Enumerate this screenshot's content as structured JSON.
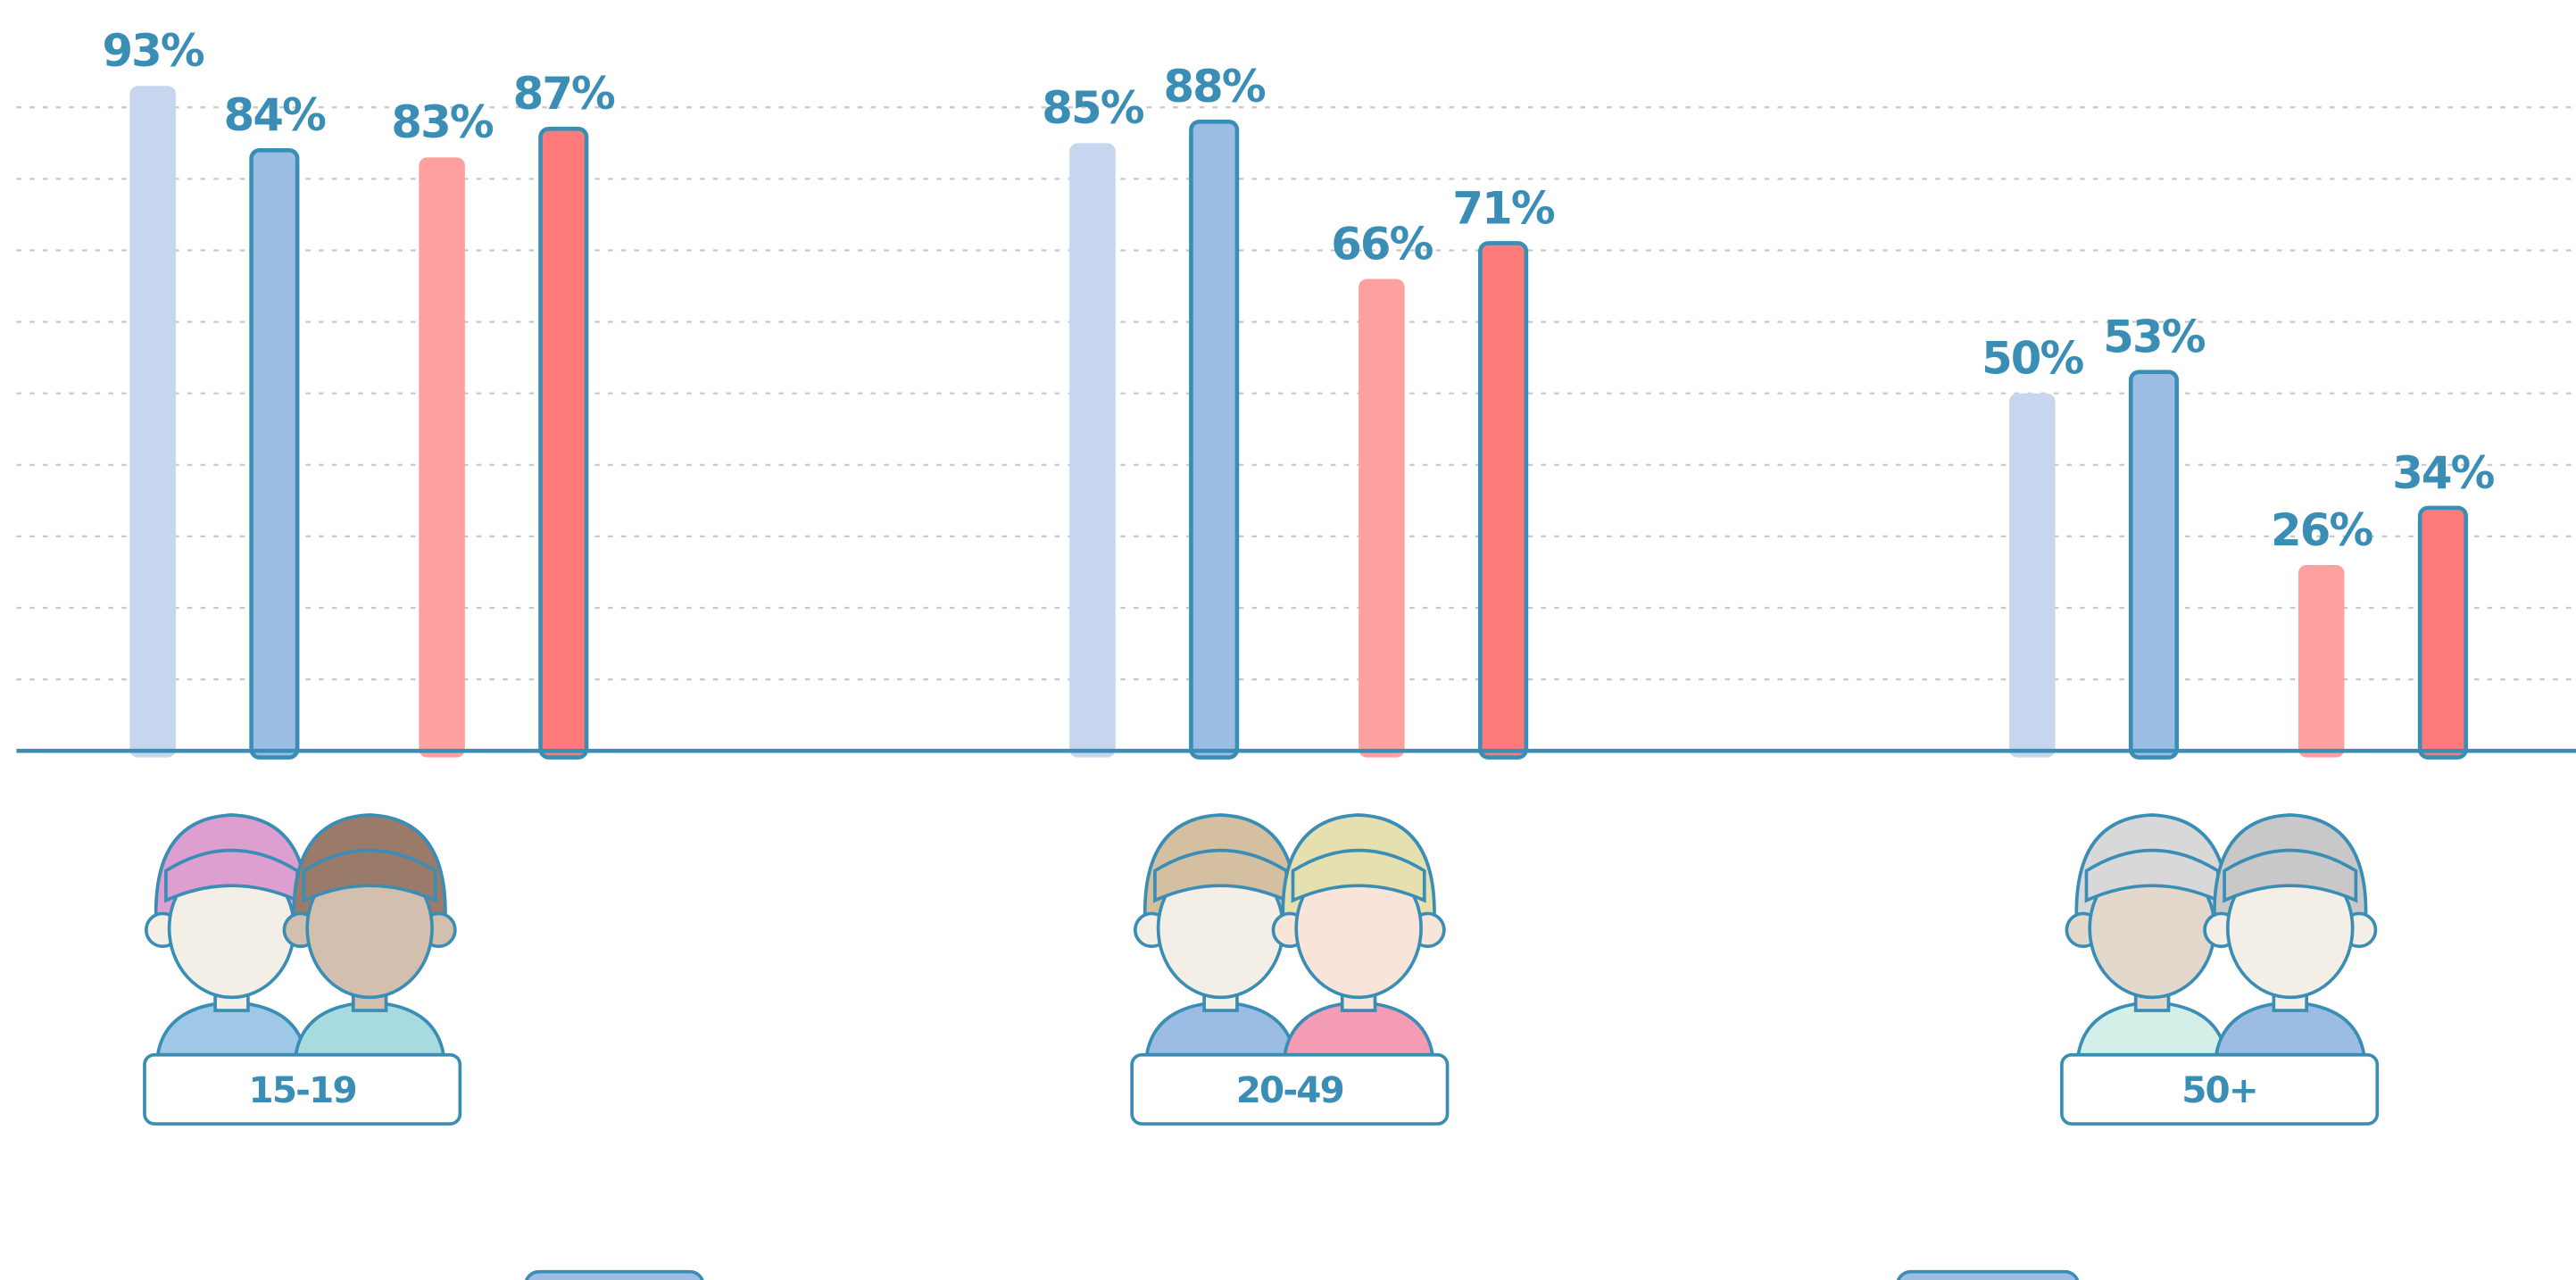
{
  "chart_data": {
    "type": "bar",
    "categories": [
      "15-19",
      "20-49",
      "50+"
    ],
    "series": [
      {
        "color": "#c5d6ee",
        "outlined": false,
        "values": [
          93,
          85,
          50
        ],
        "value_labels": [
          "93%",
          "85%",
          "50%"
        ]
      },
      {
        "color": "#9bbde4",
        "outlined": true,
        "values": [
          84,
          88,
          53
        ],
        "value_labels": [
          "84%",
          "88%",
          "53%"
        ]
      },
      {
        "color": "#ffa0a0",
        "outlined": false,
        "values": [
          83,
          66,
          26
        ],
        "value_labels": [
          "83%",
          "66%",
          "26%"
        ]
      },
      {
        "color": "#ff7b7b",
        "outlined": true,
        "values": [
          87,
          71,
          34
        ],
        "value_labels": [
          "87%",
          "71%",
          "34%"
        ]
      }
    ],
    "ylim": [
      0,
      105
    ],
    "yticks": [
      10,
      20,
      30,
      40,
      50,
      60,
      70,
      80,
      90
    ],
    "grid": true
  }
}
